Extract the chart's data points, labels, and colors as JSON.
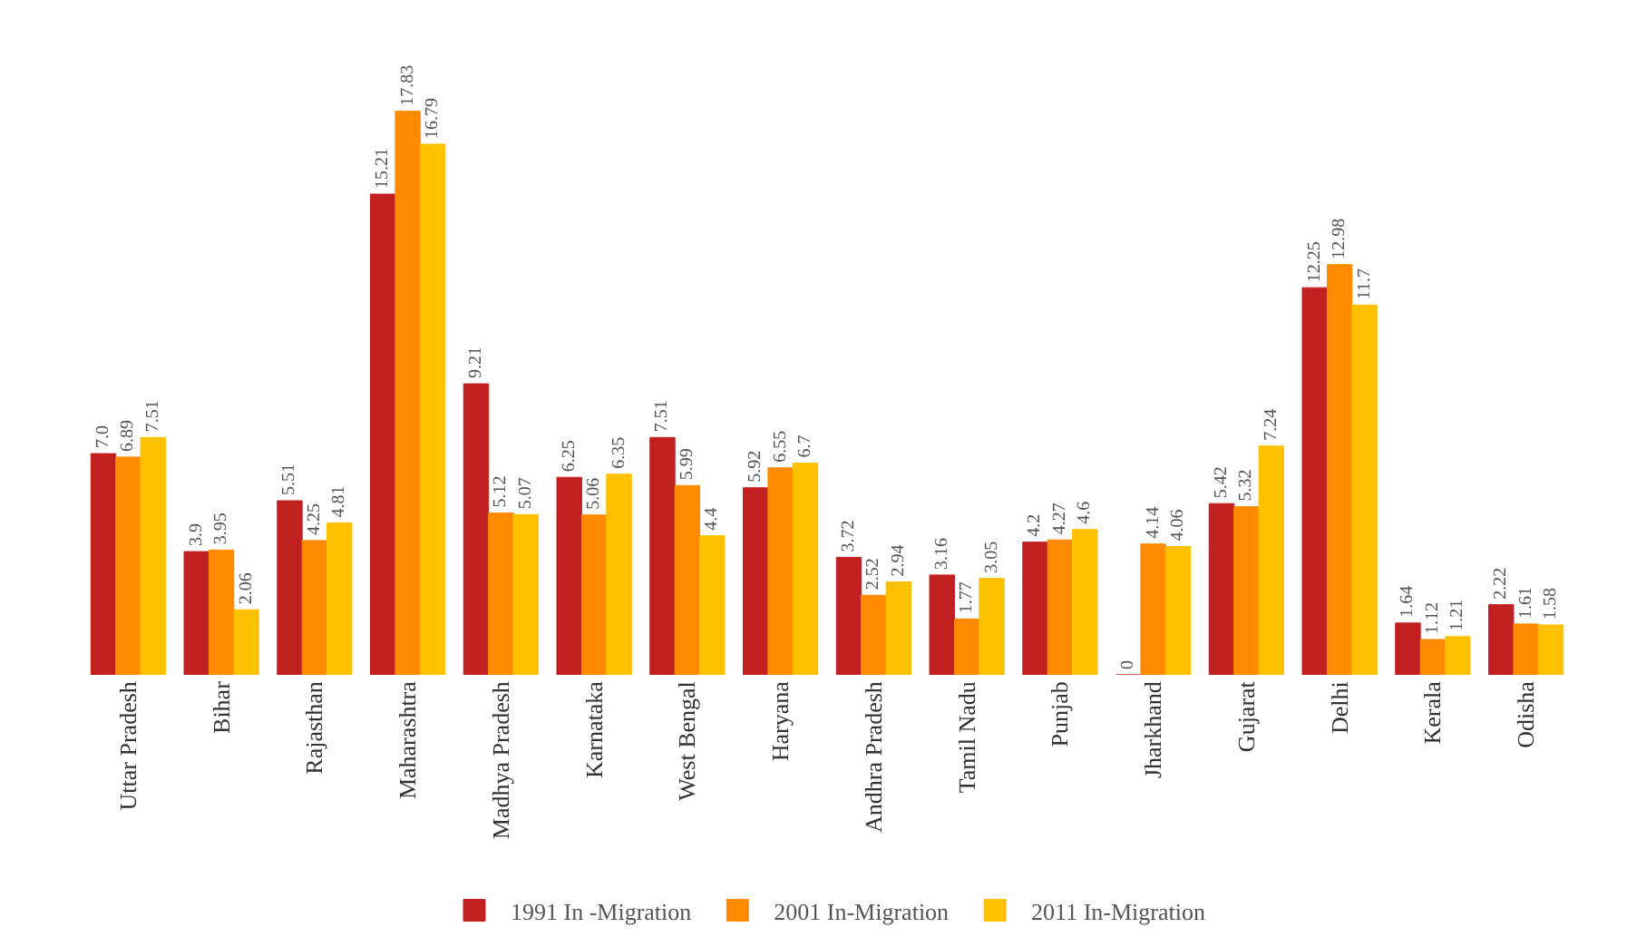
{
  "chart_data": {
    "type": "bar",
    "categories": [
      "Uttar Pradesh",
      "Bihar",
      "Rajasthan",
      "Maharashtra",
      "Madhya Pradesh",
      "Karnataka",
      "West Bengal",
      "Haryana",
      "Andhra Pradesh",
      "Tamil Nadu",
      "Punjab",
      "Jharkhand",
      "Gujarat",
      "Delhi",
      "Kerala",
      "Odisha"
    ],
    "series": [
      {
        "name": "1991 In -Migration",
        "color": "#c0201f",
        "values": [
          7.0,
          3.9,
          5.51,
          15.21,
          9.21,
          6.25,
          7.51,
          5.92,
          3.72,
          3.16,
          4.2,
          0,
          5.42,
          12.25,
          1.64,
          2.22
        ],
        "value_labels": [
          "7.0",
          "3.9",
          "5.51",
          "15.21",
          "9.21",
          "6.25",
          "7.51",
          "5.92",
          "3.72",
          "3.16",
          "4.2",
          "0",
          "5.42",
          "12.25",
          "1.64",
          "2.22"
        ]
      },
      {
        "name": "2001 In-Migration",
        "color": "#ff8a00",
        "values": [
          6.89,
          3.95,
          4.25,
          17.83,
          5.12,
          5.06,
          5.99,
          6.55,
          2.52,
          1.77,
          4.27,
          4.14,
          5.32,
          12.98,
          1.12,
          1.61
        ],
        "value_labels": [
          "6.89",
          "3.95",
          "4.25",
          "17.83",
          "5.12",
          "5.06",
          "5.99",
          "6.55",
          "2.52",
          "1.77",
          "4.27",
          "4.14",
          "5.32",
          "12.98",
          "1.12",
          "1.61"
        ]
      },
      {
        "name": "2011 In-Migration",
        "color": "#ffc000",
        "values": [
          7.51,
          2.06,
          4.81,
          16.79,
          5.07,
          6.35,
          4.4,
          6.7,
          2.94,
          3.05,
          4.6,
          4.06,
          7.24,
          11.7,
          1.21,
          1.58
        ],
        "value_labels": [
          "7.51",
          "2.06",
          "4.81",
          "16.79",
          "5.07",
          "6.35",
          "4.4",
          "6.7",
          "2.94",
          "3.05",
          "4.6",
          "4.06",
          "7.24",
          "11.7",
          "1.21",
          "1.58"
        ]
      }
    ],
    "legend": "bottom",
    "tick_labels": "x"
  }
}
